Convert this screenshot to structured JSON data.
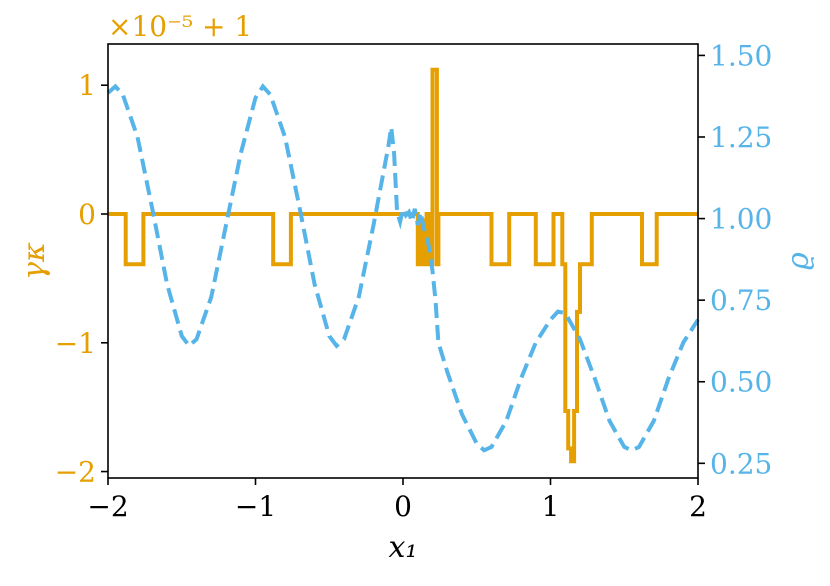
{
  "colors": {
    "left": "#E69F00",
    "right": "#56B4E9",
    "axis": "#000000"
  },
  "chart_data": {
    "type": "line",
    "xlabel": "x₁",
    "ylabel_left": "γκ",
    "ylabel_right": "ϱ",
    "offset_text": "×10⁻⁵ + 1",
    "xlim": [
      -2,
      2
    ],
    "ylim_left": [
      -2.05,
      1.32
    ],
    "ylim_right": [
      0.205,
      1.535
    ],
    "x_ticks": [
      -2,
      -1,
      0,
      1,
      2
    ],
    "x_tick_labels": [
      "−2",
      "−1",
      "0",
      "1",
      "2"
    ],
    "y_left_ticks": [
      -2,
      -1,
      0,
      1
    ],
    "y_left_tick_labels": [
      "−2",
      "−1",
      "0",
      "1"
    ],
    "y_right_ticks": [
      0.25,
      0.5,
      0.75,
      1.0,
      1.25,
      1.5
    ],
    "y_right_tick_labels": [
      "0.25",
      "0.50",
      "0.75",
      "1.00",
      "1.25",
      "1.50"
    ],
    "series": [
      {
        "axis": "left",
        "style": "solid-step",
        "points": [
          [
            -2.0,
            0
          ],
          [
            -1.88,
            0
          ],
          [
            -1.88,
            -0.39
          ],
          [
            -1.76,
            -0.39
          ],
          [
            -1.76,
            0
          ],
          [
            -0.88,
            0
          ],
          [
            -0.88,
            -0.39
          ],
          [
            -0.76,
            -0.39
          ],
          [
            -0.76,
            0
          ],
          [
            0.1,
            0
          ],
          [
            0.1,
            -0.39
          ],
          [
            0.12,
            -0.39
          ],
          [
            0.12,
            -0.05
          ],
          [
            0.14,
            -0.05
          ],
          [
            0.14,
            -0.39
          ],
          [
            0.16,
            -0.39
          ],
          [
            0.16,
            0
          ],
          [
            0.18,
            0
          ],
          [
            0.18,
            -0.39
          ],
          [
            0.2,
            -0.39
          ],
          [
            0.2,
            1.12
          ],
          [
            0.23,
            1.12
          ],
          [
            0.23,
            -0.39
          ],
          [
            0.24,
            -0.39
          ],
          [
            0.24,
            0
          ],
          [
            0.6,
            0
          ],
          [
            0.6,
            -0.39
          ],
          [
            0.72,
            -0.39
          ],
          [
            0.72,
            0
          ],
          [
            0.9,
            0
          ],
          [
            0.9,
            -0.39
          ],
          [
            1.02,
            -0.39
          ],
          [
            1.02,
            0
          ],
          [
            1.08,
            0
          ],
          [
            1.08,
            -0.39
          ],
          [
            1.1,
            -0.39
          ],
          [
            1.1,
            -1.53
          ],
          [
            1.12,
            -1.53
          ],
          [
            1.12,
            -1.82
          ],
          [
            1.14,
            -1.82
          ],
          [
            1.14,
            -1.92
          ],
          [
            1.16,
            -1.92
          ],
          [
            1.16,
            -1.53
          ],
          [
            1.18,
            -1.53
          ],
          [
            1.18,
            -0.76
          ],
          [
            1.2,
            -0.76
          ],
          [
            1.2,
            -0.39
          ],
          [
            1.28,
            -0.39
          ],
          [
            1.28,
            0
          ],
          [
            1.62,
            0
          ],
          [
            1.62,
            -0.39
          ],
          [
            1.72,
            -0.39
          ],
          [
            1.72,
            0
          ],
          [
            2.0,
            0
          ]
        ]
      },
      {
        "axis": "right",
        "style": "dashed",
        "points": [
          [
            -2.0,
            1.385
          ],
          [
            -1.95,
            1.405
          ],
          [
            -1.9,
            1.38
          ],
          [
            -1.8,
            1.25
          ],
          [
            -1.7,
            1.03
          ],
          [
            -1.6,
            0.8
          ],
          [
            -1.5,
            0.64
          ],
          [
            -1.45,
            0.61
          ],
          [
            -1.4,
            0.63
          ],
          [
            -1.3,
            0.76
          ],
          [
            -1.2,
            0.98
          ],
          [
            -1.1,
            1.2
          ],
          [
            -1.0,
            1.37
          ],
          [
            -0.95,
            1.405
          ],
          [
            -0.9,
            1.38
          ],
          [
            -0.8,
            1.25
          ],
          [
            -0.7,
            1.03
          ],
          [
            -0.6,
            0.8
          ],
          [
            -0.5,
            0.64
          ],
          [
            -0.45,
            0.61
          ],
          [
            -0.4,
            0.63
          ],
          [
            -0.3,
            0.76
          ],
          [
            -0.2,
            0.98
          ],
          [
            -0.15,
            1.1
          ],
          [
            -0.1,
            1.22
          ],
          [
            -0.08,
            1.28
          ],
          [
            -0.06,
            1.2
          ],
          [
            -0.04,
            1.02
          ],
          [
            -0.02,
            0.99
          ],
          [
            0.0,
            1.03
          ],
          [
            0.02,
            1.01
          ],
          [
            0.04,
            1.02
          ],
          [
            0.06,
            0.99
          ],
          [
            0.08,
            1.03
          ],
          [
            0.1,
            0.98
          ],
          [
            0.12,
            1.02
          ],
          [
            0.14,
            0.97
          ],
          [
            0.16,
            0.95
          ],
          [
            0.18,
            0.9
          ],
          [
            0.2,
            0.84
          ],
          [
            0.22,
            0.75
          ],
          [
            0.24,
            0.62
          ],
          [
            0.3,
            0.53
          ],
          [
            0.4,
            0.4
          ],
          [
            0.5,
            0.31
          ],
          [
            0.55,
            0.29
          ],
          [
            0.6,
            0.3
          ],
          [
            0.7,
            0.38
          ],
          [
            0.8,
            0.51
          ],
          [
            0.9,
            0.62
          ],
          [
            1.0,
            0.69
          ],
          [
            1.05,
            0.715
          ],
          [
            1.1,
            0.71
          ],
          [
            1.2,
            0.63
          ],
          [
            1.3,
            0.51
          ],
          [
            1.4,
            0.38
          ],
          [
            1.5,
            0.3
          ],
          [
            1.55,
            0.29
          ],
          [
            1.6,
            0.3
          ],
          [
            1.7,
            0.38
          ],
          [
            1.8,
            0.51
          ],
          [
            1.9,
            0.62
          ],
          [
            2.0,
            0.69
          ]
        ]
      }
    ]
  }
}
